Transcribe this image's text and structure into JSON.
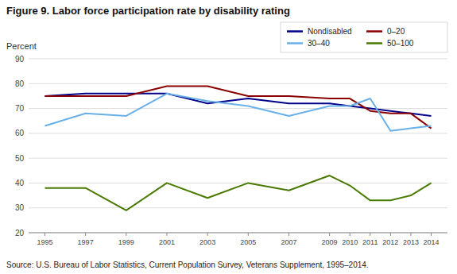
{
  "chart_data": {
    "type": "line",
    "title": "Figure 9. Labor force participation rate by disability rating",
    "ylabel": "Percent",
    "source": "Source: U.S. Bureau of Labor Statistics,  Current Population Survey, Veterans Supplement, 1995–2014.",
    "x": [
      1995,
      1997,
      1999,
      2001,
      2003,
      2005,
      2007,
      2009,
      2010,
      2011,
      2012,
      2013,
      2014
    ],
    "series": [
      {
        "name": "Nondisabled",
        "color": "#00008B",
        "values": [
          75,
          76,
          76,
          76,
          72,
          74,
          72,
          72,
          71,
          70,
          69,
          68,
          67
        ]
      },
      {
        "name": "0–20",
        "color": "#8B0000",
        "values": [
          75,
          75,
          75,
          79,
          79,
          75,
          75,
          74,
          74,
          69,
          68,
          68,
          62
        ]
      },
      {
        "name": "30–40",
        "color": "#6ab0e8",
        "values": [
          63,
          68,
          67,
          76,
          73,
          71,
          67,
          71,
          71,
          74,
          61,
          62,
          63
        ]
      },
      {
        "name": "50–100",
        "color": "#4a7a00",
        "values": [
          38,
          38,
          29,
          40,
          34,
          40,
          37,
          43,
          39,
          33,
          33,
          35,
          40
        ]
      }
    ],
    "xlim": [
      1994.2,
      2014.8
    ],
    "xticks": [
      1995,
      1997,
      1999,
      2001,
      2003,
      2005,
      2007,
      2009,
      2010,
      2011,
      2012,
      2013,
      2014
    ],
    "ylim": [
      20,
      90
    ],
    "yticks": [
      20,
      30,
      40,
      50,
      60,
      70,
      80,
      90
    ],
    "grid": true,
    "legend": "upper right"
  }
}
